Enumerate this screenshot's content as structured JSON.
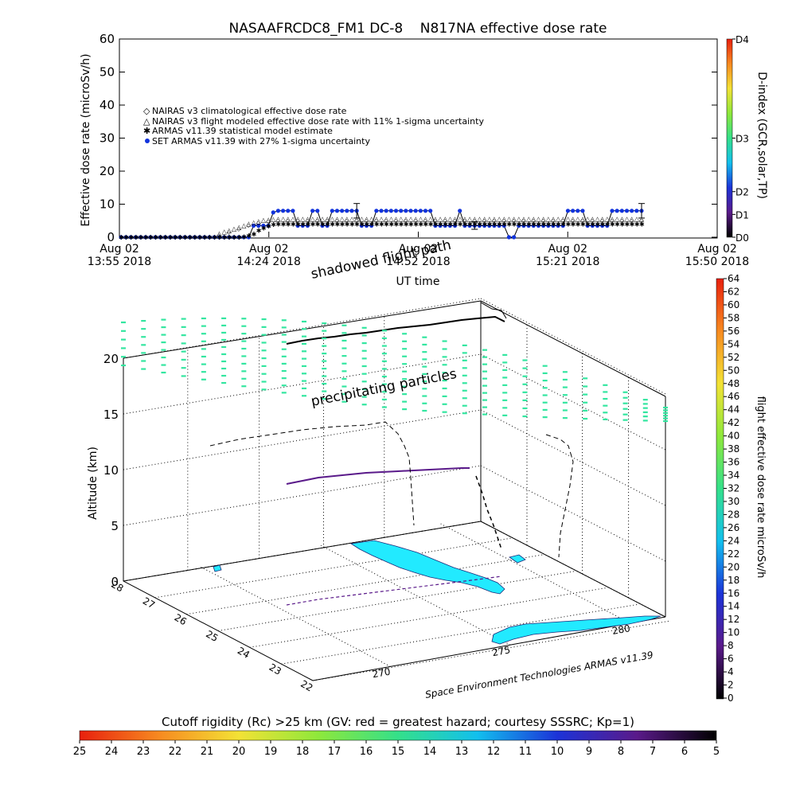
{
  "chart_data": [
    {
      "type": "line",
      "title": "NASAAFRCDC8_FM1 DC-8    N817NA effective dose rate",
      "xlabel": "UT time",
      "ylabel": "Effective dose rate (microSv/h)",
      "ylim": [
        0,
        60
      ],
      "yticks": [
        "0",
        "10",
        "20",
        "30",
        "40",
        "50",
        "60"
      ],
      "xticks": [
        {
          "line1": "Aug 02",
          "line2": "13:55 2018"
        },
        {
          "line1": "Aug 02",
          "line2": "14:24 2018"
        },
        {
          "line1": "Aug 02",
          "line2": "14:52 2018"
        },
        {
          "line1": "Aug 02",
          "line2": "15:21 2018"
        },
        {
          "line1": "Aug 02",
          "line2": "15:50 2018"
        }
      ],
      "legend_position": "top-left",
      "legend": [
        "NAIRAS v3 climatological effective dose rate",
        "NAIRAS v3 flight modeled effective dose rate with 11% 1-sigma uncertainty",
        "ARMAS v11.39 statistical model estimate",
        "SET ARMAS v11.39 with 27% 1-sigma uncertainty"
      ],
      "series_colors": [
        "#d06060",
        "#000000",
        "#66dd44",
        "#1133dd"
      ],
      "series": [
        {
          "name": "SET ARMAS v11.39 with 27% 1-sigma uncertainty",
          "values": [
            0,
            0,
            0,
            0,
            0,
            0,
            0,
            0,
            0,
            0,
            0,
            0,
            0,
            0,
            0,
            0,
            0,
            0,
            0,
            0,
            0,
            0,
            0,
            0,
            0,
            0,
            0,
            3.5,
            3.5,
            3.5,
            3.5,
            7.5,
            8,
            8,
            8,
            8,
            3.5,
            3.5,
            3.5,
            8,
            8,
            3.5,
            3.5,
            8,
            8,
            8,
            8,
            8,
            8,
            3.5,
            3.5,
            3.5,
            8,
            8,
            8,
            8,
            8,
            8,
            8,
            8,
            8,
            8,
            8,
            8,
            3.5,
            3.5,
            3.5,
            3.5,
            3.5,
            8,
            3.5,
            3.5,
            3.5,
            3.5,
            3.5,
            3.5,
            3.5,
            3.5,
            3.5,
            0,
            0,
            3.5,
            3.5,
            3.5,
            3.5,
            3.5,
            3.5,
            3.5,
            3.5,
            3.5,
            3.5,
            8,
            8,
            8,
            8,
            3.5,
            3.5,
            3.5,
            3.5,
            3.5,
            8,
            8,
            8,
            8,
            8,
            8,
            8
          ]
        },
        {
          "name": "ARMAS v11.39 statistical model estimate",
          "values": [
            0,
            0,
            0,
            0,
            0,
            0,
            0,
            0,
            0,
            0,
            0,
            0,
            0,
            0,
            0,
            0,
            0,
            0,
            0,
            0,
            0,
            0,
            0,
            0,
            0,
            0.1,
            0.5,
            1,
            2,
            2.8,
            3.4,
            3.8,
            4,
            4,
            4,
            4,
            4,
            4,
            4,
            4,
            4,
            4,
            4,
            4,
            4,
            4,
            4,
            4,
            4,
            4,
            4,
            4,
            4,
            4,
            4,
            4,
            4,
            4,
            4,
            4,
            4,
            4,
            4,
            4,
            4,
            4,
            4,
            4,
            4,
            4,
            4,
            4,
            4,
            4,
            4,
            4,
            4,
            4,
            4,
            4,
            4,
            4,
            4,
            4,
            4,
            4,
            4,
            4,
            4,
            4,
            4,
            4,
            4,
            4,
            4,
            4,
            4,
            4,
            4,
            4,
            4,
            4,
            4,
            4,
            4,
            4,
            4
          ]
        },
        {
          "name": "NAIRAS v3 flight modeled effective dose rate with 11% 1-sigma uncertainty",
          "values": [
            0,
            0,
            0,
            0,
            0,
            0,
            0,
            0,
            0,
            0,
            0,
            0,
            0,
            0,
            0,
            0,
            0,
            0,
            0,
            0,
            0.3,
            0.8,
            1.2,
            1.7,
            2.2,
            2.7,
            3.2,
            3.6,
            4,
            4.3,
            4.5,
            4.6,
            4.7,
            4.7,
            4.7,
            4.7,
            4.7,
            4.7,
            4.7,
            4.7,
            4.7,
            4.7,
            4.7,
            4.7,
            4.7,
            4.7,
            4.7,
            4.7,
            4.7,
            4.7,
            4.7,
            4.7,
            4.7,
            4.7,
            4.7,
            4.7,
            4.7,
            4.7,
            4.7,
            4.7,
            4.7,
            4.7,
            4.7,
            4.7,
            4.7,
            4.7,
            4.7,
            4.7,
            4.7,
            4.7,
            4.7,
            4.7,
            4.7,
            4.7,
            4.7,
            4.7,
            4.7,
            4.7,
            4.7,
            4.7,
            4.7,
            4.7,
            4.7,
            4.7,
            4.7,
            4.7,
            4.7,
            4.7,
            4.7,
            4.7,
            4.7,
            4.7,
            4.7,
            4.7,
            4.7,
            4.7,
            4.7,
            4.7,
            4.7,
            4.7,
            4.7,
            4.7,
            4.7,
            4.7,
            4.7,
            4.7,
            4.7
          ]
        }
      ],
      "error_bars": [
        {
          "series": "SET ARMAS v11.39 with 27% 1-sigma uncertainty",
          "index": 48,
          "low": 5.8,
          "high": 10.2
        },
        {
          "series": "SET ARMAS v11.39 with 27% 1-sigma uncertainty",
          "index": 72,
          "low": 2.4,
          "high": 4.6
        },
        {
          "series": "SET ARMAS v11.39 with 27% 1-sigma uncertainty",
          "index": 106,
          "low": 5.8,
          "high": 10.2
        }
      ],
      "right_axis": {
        "label": "D-index (GCR,solar,TP)",
        "ticks": [
          "D0",
          "D1",
          "D2",
          "D3",
          "D4"
        ],
        "tick_fractions": [
          0,
          0.115,
          0.23,
          0.5,
          1
        ],
        "colormap": [
          "#000000",
          "#5a1a8a",
          "#1c33d8",
          "#12bfee",
          "#34e08a",
          "#8ee83b",
          "#f3e235",
          "#f78a20",
          "#e8200e"
        ]
      }
    },
    {
      "type": "3d-flight-track",
      "zlabel": "Altitude (km)",
      "zlim": [
        0,
        20
      ],
      "zticks": [
        "0",
        "5",
        "10",
        "15",
        "20"
      ],
      "lat_ticks": [
        "28",
        "27",
        "26",
        "25",
        "24",
        "23",
        "22"
      ],
      "lon_ticks": [
        "270",
        "275",
        "280"
      ],
      "annotations": [
        "shadowed flight path",
        "precipitating particles"
      ],
      "credit": "Space Environment Technologies ARMAS v11.39",
      "dose_scale": {
        "label": "flight effective dose rate microSv/h",
        "ticks": [
          "0",
          "2",
          "4",
          "6",
          "8",
          "10",
          "12",
          "14",
          "16",
          "18",
          "20",
          "22",
          "24",
          "26",
          "28",
          "30",
          "32",
          "34",
          "36",
          "38",
          "40",
          "42",
          "44",
          "46",
          "48",
          "50",
          "52",
          "54",
          "56",
          "58",
          "60",
          "62",
          "64"
        ],
        "colormap": [
          "#000000",
          "#5a1a8a",
          "#1c33d8",
          "#12bfee",
          "#34e08a",
          "#8ee83b",
          "#f3e235",
          "#f78a20",
          "#e8200e"
        ]
      },
      "particle_color": "#33e6a0",
      "land_color": "#22eaff"
    },
    {
      "type": "colorbar",
      "title": "Cutoff rigidity (Rc) >25 km (GV: red = greatest hazard; courtesy SSSRC; Kp=1)",
      "ticks": [
        "25",
        "24",
        "23",
        "22",
        "21",
        "20",
        "19",
        "18",
        "17",
        "16",
        "15",
        "14",
        "13",
        "12",
        "11",
        "10",
        "9",
        "8",
        "7",
        "6",
        "5"
      ],
      "colormap": [
        "#000000",
        "#5a1a8a",
        "#1c33d8",
        "#12bfee",
        "#34e08a",
        "#8ee83b",
        "#f3e235",
        "#f78a20",
        "#e8200e"
      ]
    }
  ]
}
